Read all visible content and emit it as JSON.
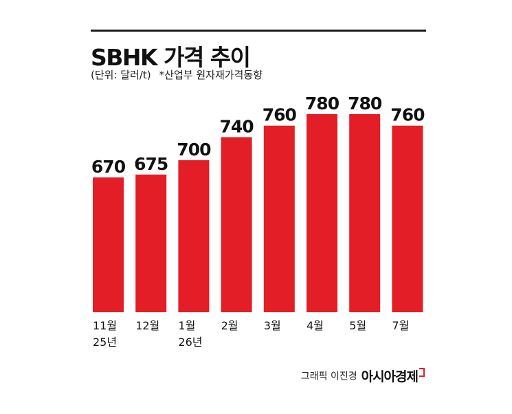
{
  "header": {
    "title": "SBHK 가격 추이",
    "unit": "(단위: 달러/t)",
    "source": "*산업부 원자재가격동향"
  },
  "chart_data": {
    "type": "bar",
    "categories": [
      "11월\n25년",
      "12월",
      "1월\n26년",
      "2월",
      "3월",
      "4월",
      "5월",
      "7월"
    ],
    "values": [
      670,
      675,
      700,
      740,
      760,
      780,
      780,
      760
    ],
    "value_labels": [
      "670",
      "675",
      "700",
      "740",
      "760",
      "780",
      "780",
      "760"
    ],
    "ylim": [
      0,
      780
    ],
    "grid": false,
    "bar_color": "#e31e26"
  },
  "footer": {
    "credit": "그래픽 이진경",
    "brand": "아시아경제"
  }
}
